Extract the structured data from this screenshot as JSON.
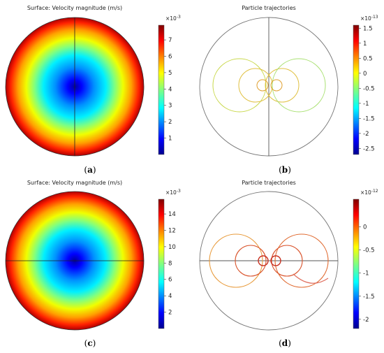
{
  "colormap": [
    "#00008f",
    "#0000ff",
    "#00a0ff",
    "#00ffff",
    "#80ff80",
    "#ffff00",
    "#ff8000",
    "#ff0000",
    "#800000"
  ],
  "chart_data": [
    {
      "id": "a",
      "type": "heatmap",
      "title": "Surface: Velocity magnitude (m/s)",
      "caption": "a",
      "colorbar_exponent_base": "×10",
      "colorbar_exponent": "-3",
      "clim": [
        0,
        7.9
      ],
      "colorbar_ticks": [
        "1",
        "2",
        "3",
        "4",
        "5",
        "6",
        "7"
      ],
      "field": "radial, minimum at center, maximum at rim",
      "guide_line": "vertical"
    },
    {
      "id": "b",
      "type": "scatter",
      "title": "Particle trajectories",
      "caption": "b",
      "colorbar_exponent_base": "×10",
      "colorbar_exponent": "-13",
      "clim": [
        -2.7,
        1.6
      ],
      "colorbar_ticks": [
        "1.5",
        "1",
        "0.5",
        "0",
        "-0.5",
        "-1",
        "-1.5",
        "-2",
        "-2.5"
      ],
      "guide_line": "vertical",
      "trajectory_color": "#c8d84a"
    },
    {
      "id": "c",
      "type": "heatmap",
      "title": "Surface: Velocity magnitude (m/s)",
      "caption": "c",
      "colorbar_exponent_base": "×10",
      "colorbar_exponent": "-3",
      "clim": [
        0,
        15.8
      ],
      "colorbar_ticks": [
        "14",
        "12",
        "10",
        "8",
        "6",
        "4",
        "2"
      ],
      "field": "radial, minimum at center, maximum at rim",
      "guide_line": "horizontal"
    },
    {
      "id": "d",
      "type": "scatter",
      "title": "Particle trajectories",
      "caption": "d",
      "colorbar_exponent_base": "×10",
      "colorbar_exponent": "-12",
      "clim": [
        -2.2,
        0.6
      ],
      "colorbar_ticks": [
        "0",
        "-0.5",
        "-1",
        "-1.5",
        "-2"
      ],
      "guide_line": "horizontal",
      "trajectory_color": "#d9522a"
    }
  ]
}
